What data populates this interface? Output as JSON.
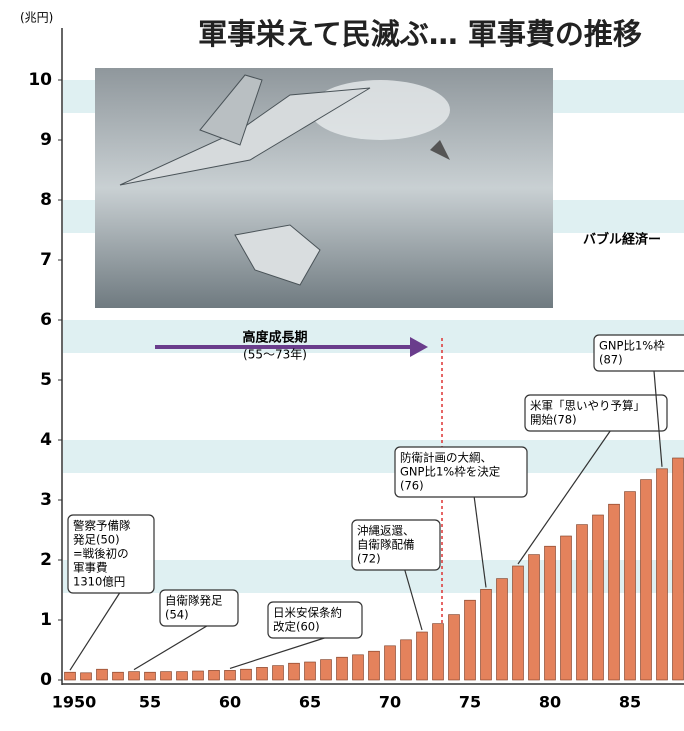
{
  "chart_data": {
    "type": "bar",
    "title": "軍事栄えて民滅ぶ… 軍事費の推移",
    "y_label": "(兆円)",
    "categories": [
      "1950",
      null,
      null,
      null,
      null,
      "55",
      null,
      null,
      null,
      null,
      "60",
      null,
      null,
      null,
      null,
      "65",
      null,
      null,
      null,
      null,
      "70",
      null,
      null,
      null,
      null,
      "75",
      null,
      null,
      null,
      null,
      "80",
      null,
      null,
      null,
      null,
      "85",
      null,
      null,
      null
    ],
    "values": [
      0.13,
      0.12,
      0.18,
      0.13,
      0.14,
      0.13,
      0.14,
      0.14,
      0.15,
      0.16,
      0.16,
      0.18,
      0.21,
      0.24,
      0.28,
      0.3,
      0.34,
      0.38,
      0.42,
      0.48,
      0.57,
      0.67,
      0.8,
      0.94,
      1.09,
      1.33,
      1.51,
      1.69,
      1.9,
      2.09,
      2.23,
      2.4,
      2.59,
      2.75,
      2.93,
      3.14,
      3.34,
      3.52,
      3.7
    ],
    "color": "#e4825c",
    "ylim": [
      0,
      10.3
    ],
    "yticks": [
      0,
      1,
      2,
      3,
      4,
      5,
      6,
      7,
      8,
      9,
      10
    ],
    "period_label": [
      "高度成長期",
      "(55〜73年)"
    ],
    "bubble_label": "バブル経済ー",
    "annotations": [
      [
        "警察予備隊",
        "発足(50)",
        "=戦後初の",
        "軍事費",
        "1310億円"
      ],
      [
        "自衛隊発足",
        "(54)"
      ],
      [
        "日米安保条約",
        "改定(60)"
      ],
      [
        "沖縄返還、",
        "自衛隊配備",
        "(72)"
      ],
      [
        "防衛計画の大綱、",
        "GNP比1%枠を決定",
        "(76)"
      ],
      [
        "米軍「思いやり予算」",
        "開始(78)"
      ],
      [
        "GNP比1%枠",
        "(87)"
      ]
    ]
  }
}
